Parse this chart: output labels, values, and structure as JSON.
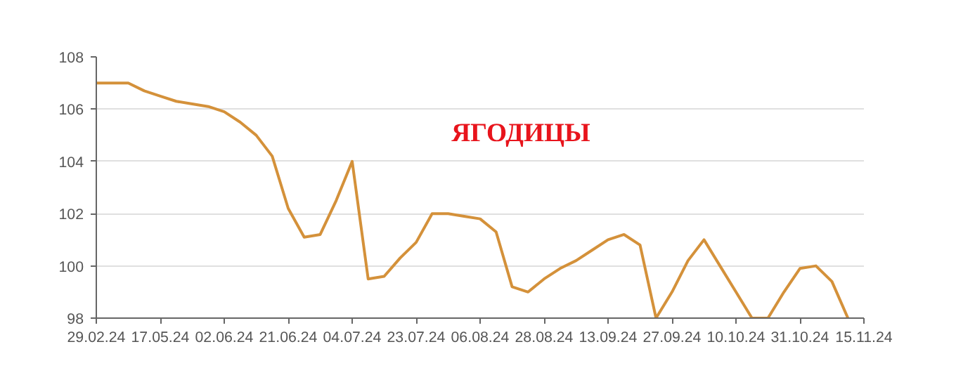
{
  "chart_data": {
    "type": "line",
    "title": "ЯГОДИЦЫ",
    "categories": [
      "29.02.24",
      null,
      null,
      null,
      "17.05.24",
      null,
      null,
      null,
      "02.06.24",
      null,
      null,
      null,
      "21.06.24",
      null,
      null,
      null,
      "04.07.24",
      null,
      null,
      null,
      "23.07.24",
      null,
      null,
      null,
      "06.08.24",
      null,
      null,
      null,
      "28.08.24",
      null,
      null,
      null,
      "13.09.24",
      null,
      null,
      null,
      "27.09.24",
      null,
      null,
      null,
      "10.10.24",
      null,
      null,
      null,
      "31.10.24",
      null,
      null,
      null,
      "15.11.24"
    ],
    "series": [
      {
        "color": "#d4913a",
        "values": [
          107,
          107,
          107,
          106.7,
          106.5,
          106.3,
          106.2,
          106.1,
          105.9,
          105.5,
          105.0,
          104.2,
          102.2,
          101.1,
          101.2,
          102.5,
          104.0,
          99.5,
          99.6,
          100.3,
          100.9,
          102.0,
          102.0,
          101.9,
          101.8,
          101.3,
          99.2,
          99.0,
          99.5,
          99.9,
          100.2,
          100.6,
          101.0,
          101.2,
          100.8,
          98.0,
          99.0,
          100.2,
          101.0,
          100.0,
          99.0,
          98.0,
          98.0,
          99.0,
          99.9,
          100.0,
          99.4,
          98.0,
          null
        ]
      }
    ],
    "ylim": [
      98,
      108
    ],
    "yticks": [
      98,
      100,
      102,
      104,
      106,
      108
    ],
    "grid": "y",
    "marker": "none",
    "line_style": "solid"
  }
}
